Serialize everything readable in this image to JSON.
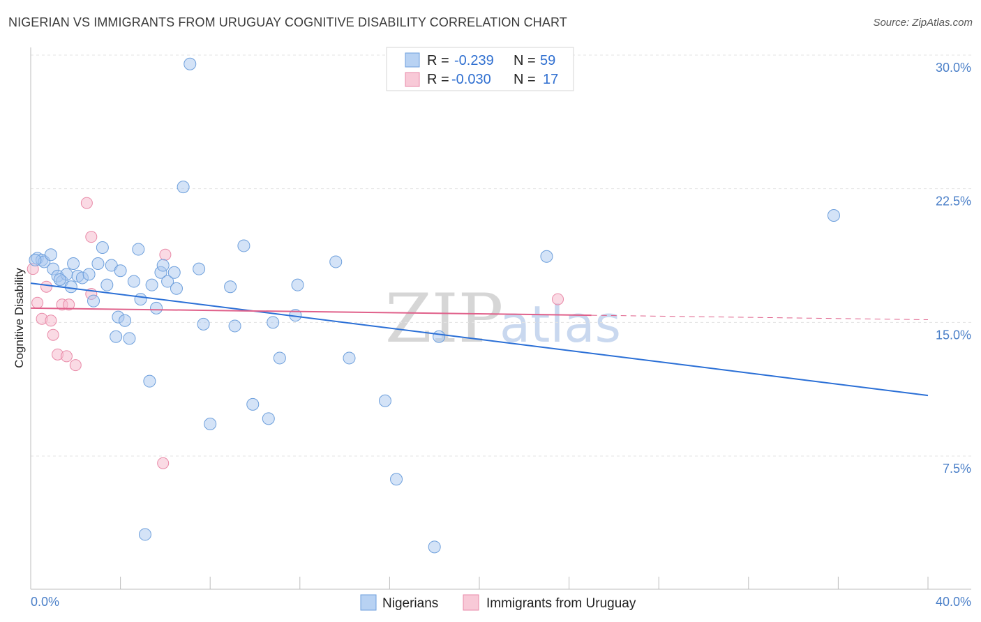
{
  "header": {
    "title": "NIGERIAN VS IMMIGRANTS FROM URUGUAY COGNITIVE DISABILITY CORRELATION CHART",
    "source": "Source: ZipAtlas.com"
  },
  "legend": {
    "series1": {
      "r_label": "R =",
      "r_value": "-0.239",
      "n_label": "N =",
      "n_value": "59"
    },
    "series2": {
      "r_label": "R =",
      "r_value": "-0.030",
      "n_label": "N =",
      "n_value": "17"
    }
  },
  "watermark": {
    "zip": "ZIP",
    "atlas": "atlas"
  },
  "colors": {
    "blue_fill": "#a9c8f0",
    "blue_stroke": "#6d9fdc",
    "blue_line": "#2a6fd6",
    "pink_fill": "#f6bccd",
    "pink_stroke": "#e98aa8",
    "pink_line": "#e0608a"
  },
  "chart_data": {
    "type": "scatter",
    "title": "NIGERIAN VS IMMIGRANTS FROM URUGUAY COGNITIVE DISABILITY CORRELATION CHART",
    "xlabel": "",
    "ylabel": "Cognitive Disability",
    "xlim": [
      0,
      40
    ],
    "ylim": [
      0,
      30.5
    ],
    "x_tick_labels": [
      "0.0%",
      "40.0%"
    ],
    "y_ticks": [
      7.5,
      15.0,
      22.5,
      30.0
    ],
    "y_tick_labels": [
      "7.5%",
      "15.0%",
      "22.5%",
      "30.0%"
    ],
    "grid": true,
    "legend_position": "top-center",
    "series": [
      {
        "name": "Nigerians",
        "color": "#a9c8f0",
        "points": [
          [
            0.3,
            18.6
          ],
          [
            0.5,
            18.5
          ],
          [
            0.6,
            18.4
          ],
          [
            0.9,
            18.8
          ],
          [
            1.0,
            18.0
          ],
          [
            1.2,
            17.6
          ],
          [
            1.4,
            17.3
          ],
          [
            1.6,
            17.7
          ],
          [
            1.8,
            17.0
          ],
          [
            1.9,
            18.3
          ],
          [
            2.1,
            17.6
          ],
          [
            2.3,
            17.5
          ],
          [
            2.6,
            17.7
          ],
          [
            2.8,
            16.2
          ],
          [
            3.0,
            18.3
          ],
          [
            3.2,
            19.2
          ],
          [
            3.4,
            17.1
          ],
          [
            3.6,
            18.2
          ],
          [
            3.8,
            14.2
          ],
          [
            3.9,
            15.3
          ],
          [
            4.0,
            17.9
          ],
          [
            4.2,
            15.1
          ],
          [
            4.4,
            14.1
          ],
          [
            4.6,
            17.3
          ],
          [
            4.8,
            19.1
          ],
          [
            4.9,
            16.3
          ],
          [
            5.1,
            3.1
          ],
          [
            5.3,
            11.7
          ],
          [
            5.4,
            17.1
          ],
          [
            5.6,
            15.8
          ],
          [
            5.8,
            17.8
          ],
          [
            5.9,
            18.2
          ],
          [
            6.1,
            17.3
          ],
          [
            6.4,
            17.8
          ],
          [
            6.5,
            16.9
          ],
          [
            6.8,
            22.6
          ],
          [
            7.1,
            29.5
          ],
          [
            7.5,
            18.0
          ],
          [
            7.7,
            14.9
          ],
          [
            8.0,
            9.3
          ],
          [
            8.9,
            17.0
          ],
          [
            9.1,
            14.8
          ],
          [
            9.5,
            19.3
          ],
          [
            9.9,
            10.4
          ],
          [
            10.6,
            9.6
          ],
          [
            10.8,
            15.0
          ],
          [
            11.1,
            13.0
          ],
          [
            11.8,
            15.4
          ],
          [
            11.9,
            17.1
          ],
          [
            13.6,
            18.4
          ],
          [
            14.2,
            13.0
          ],
          [
            15.8,
            10.6
          ],
          [
            16.3,
            6.2
          ],
          [
            18.0,
            2.4
          ],
          [
            18.2,
            14.2
          ],
          [
            23.0,
            18.7
          ],
          [
            35.8,
            21.0
          ],
          [
            0.2,
            18.5
          ],
          [
            1.3,
            17.4
          ]
        ]
      },
      {
        "name": "Immigrants from Uruguay",
        "color": "#f6bccd",
        "points": [
          [
            0.1,
            18.0
          ],
          [
            0.3,
            16.1
          ],
          [
            0.5,
            15.2
          ],
          [
            0.7,
            17.0
          ],
          [
            0.9,
            15.1
          ],
          [
            1.0,
            14.3
          ],
          [
            1.2,
            13.2
          ],
          [
            1.4,
            16.0
          ],
          [
            1.6,
            13.1
          ],
          [
            1.7,
            16.0
          ],
          [
            2.0,
            12.6
          ],
          [
            2.5,
            21.7
          ],
          [
            2.7,
            19.8
          ],
          [
            2.7,
            16.6
          ],
          [
            5.9,
            7.1
          ],
          [
            6.0,
            18.8
          ],
          [
            23.5,
            16.3
          ]
        ]
      }
    ],
    "trend_lines": [
      {
        "series": "Nigerians",
        "x": [
          0,
          40
        ],
        "y": [
          17.2,
          10.9
        ],
        "style": "solid"
      },
      {
        "series": "Immigrants from Uruguay",
        "x": [
          0,
          25
        ],
        "y": [
          15.8,
          15.4
        ],
        "style": "solid"
      },
      {
        "series": "Immigrants from Uruguay",
        "x": [
          25,
          40
        ],
        "y": [
          15.4,
          15.15
        ],
        "style": "dashed"
      }
    ]
  }
}
